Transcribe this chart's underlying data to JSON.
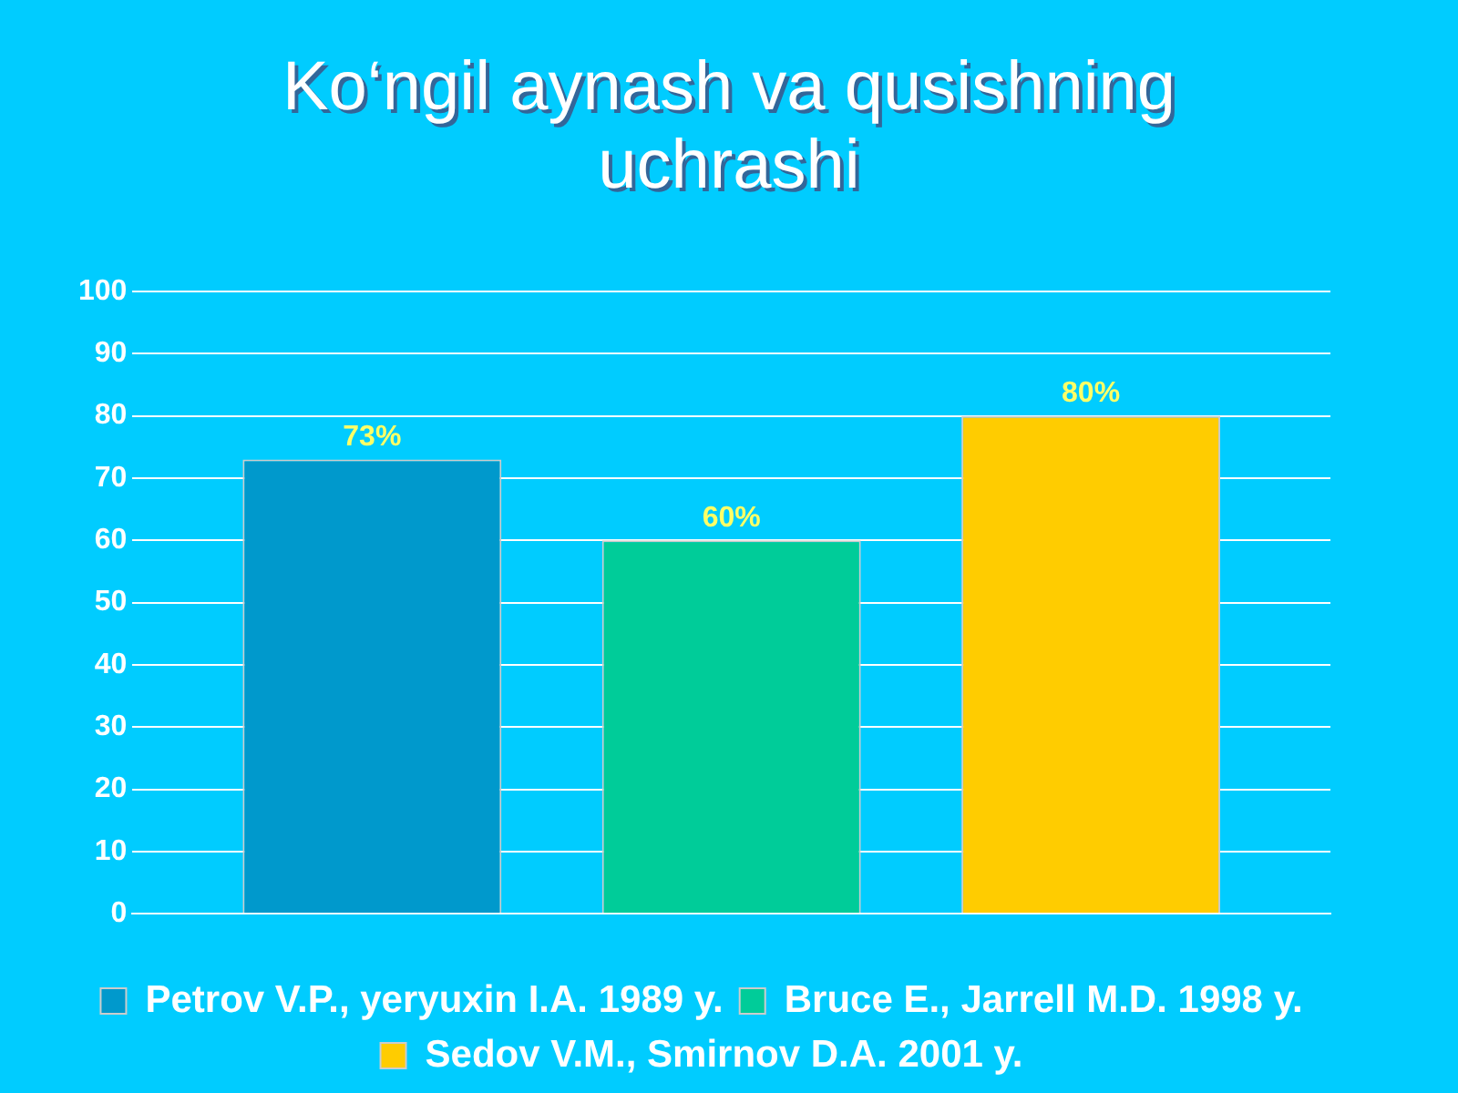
{
  "chart_data": {
    "type": "bar",
    "title": "Ko‘ngil aynash va qusishning uchrashi",
    "categories": [
      null
    ],
    "series": [
      {
        "name": "Petrov V.P., yeryuxin I.A. 1989 y.",
        "color": "#0099cc",
        "values": [
          73
        ],
        "value_labels": [
          "73%"
        ]
      },
      {
        "name": "Bruce E., Jarrell M.D. 1998 y.",
        "color": "#00cc99",
        "values": [
          60
        ],
        "value_labels": [
          "60%"
        ]
      },
      {
        "name": "Sedov V.M., Smirnov D.A. 2001 y.",
        "color": "#ffcc00",
        "values": [
          80
        ],
        "value_labels": [
          "80%"
        ]
      }
    ],
    "ylim": [
      0,
      100
    ],
    "yticks": [
      0,
      10,
      20,
      30,
      40,
      50,
      60,
      70,
      80,
      90,
      100
    ],
    "grid": "y",
    "legend": "bottom"
  }
}
